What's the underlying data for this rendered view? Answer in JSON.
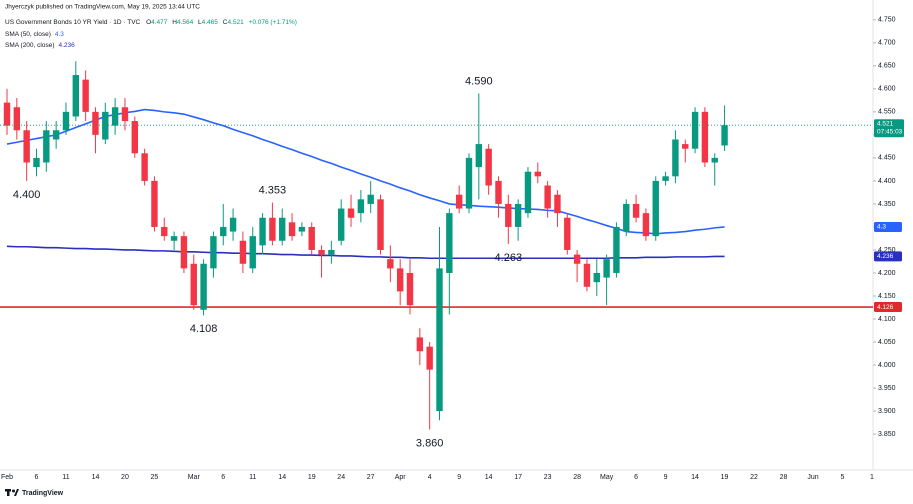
{
  "header": {
    "publisher": "Jhyerczyk published on TradingView.com, May 19, 2025 13:44 UTC",
    "symbol": "US Government Bonds 10 YR Yield · 1D · TVC",
    "ohlc_prefixes": [
      "O",
      "H",
      "L",
      "C"
    ],
    "change": "+0.076 (+1.71%)"
  },
  "footer": {
    "brand": "TradingView"
  },
  "chart_data": {
    "type": "candlestick",
    "categories": [
      "Feb",
      null,
      null,
      "6",
      null,
      null,
      "11",
      null,
      null,
      "14",
      null,
      null,
      "20",
      null,
      null,
      "25",
      null,
      null,
      null,
      "Mar",
      null,
      null,
      "6",
      null,
      null,
      "11",
      null,
      null,
      "14",
      null,
      null,
      "19",
      null,
      null,
      "24",
      null,
      null,
      "27",
      null,
      null,
      "Apr",
      null,
      null,
      "4",
      null,
      null,
      "9",
      null,
      null,
      "14",
      null,
      null,
      "17",
      null,
      null,
      "23",
      null,
      null,
      "28",
      null,
      null,
      "May",
      null,
      null,
      "6",
      null,
      null,
      "9",
      null,
      null,
      "14",
      null,
      null,
      "19",
      null,
      null,
      "22",
      null,
      null,
      "28",
      null,
      null,
      "Jun",
      null,
      null,
      "5",
      null,
      null,
      "1"
    ],
    "open": [
      4.57,
      4.56,
      4.51,
      4.43,
      4.44,
      4.49,
      4.51,
      4.54,
      4.62,
      4.55,
      4.49,
      4.52,
      4.56,
      4.53,
      4.46,
      4.4,
      4.3,
      4.27,
      4.28,
      4.22,
      4.12,
      4.21,
      4.28,
      4.29,
      4.27,
      4.21,
      4.26,
      4.32,
      4.27,
      4.31,
      4.29,
      4.3,
      4.25,
      4.24,
      4.27,
      4.34,
      4.33,
      4.35,
      4.36,
      4.23,
      4.21,
      4.2,
      4.06,
      4.04,
      3.9,
      4.2,
      4.37,
      4.34,
      4.43,
      4.47,
      4.4,
      4.35,
      4.3,
      4.33,
      4.42,
      4.39,
      4.37,
      4.32,
      4.24,
      4.22,
      4.18,
      4.19,
      4.2,
      4.29,
      4.35,
      4.33,
      4.28,
      4.4,
      4.41,
      4.48,
      4.47,
      4.55,
      4.44,
      4.477,
      null,
      null,
      null,
      null,
      null,
      null,
      null,
      null,
      null,
      null,
      null,
      null,
      null,
      null,
      null
    ],
    "high": [
      4.6,
      4.58,
      4.53,
      4.47,
      4.53,
      4.53,
      4.57,
      4.66,
      4.64,
      4.56,
      4.57,
      4.58,
      4.58,
      4.54,
      4.47,
      4.41,
      4.32,
      4.29,
      4.29,
      4.24,
      4.23,
      4.29,
      4.35,
      4.34,
      4.29,
      4.3,
      4.33,
      4.353,
      4.34,
      4.33,
      4.31,
      4.31,
      4.26,
      4.27,
      4.36,
      4.37,
      4.38,
      4.4,
      4.37,
      4.26,
      4.23,
      4.23,
      4.08,
      4.05,
      4.3,
      4.34,
      4.39,
      4.46,
      4.59,
      4.48,
      4.41,
      4.37,
      4.36,
      4.43,
      4.44,
      4.4,
      4.38,
      4.33,
      4.25,
      4.23,
      4.23,
      4.24,
      4.31,
      4.36,
      4.37,
      4.34,
      4.41,
      4.42,
      4.51,
      4.49,
      4.56,
      4.56,
      4.46,
      4.564,
      null,
      null,
      null,
      null,
      null,
      null,
      null,
      null,
      null,
      null,
      null,
      null,
      null,
      null,
      null
    ],
    "low": [
      4.5,
      4.49,
      4.4,
      4.41,
      4.42,
      4.47,
      4.5,
      4.53,
      4.53,
      4.46,
      4.48,
      4.5,
      4.51,
      4.45,
      4.39,
      4.29,
      4.27,
      4.25,
      4.2,
      4.12,
      4.108,
      4.19,
      4.26,
      4.27,
      4.2,
      4.2,
      4.24,
      4.26,
      4.26,
      4.27,
      4.28,
      4.24,
      4.19,
      4.22,
      4.26,
      4.3,
      4.31,
      4.33,
      4.24,
      4.18,
      4.13,
      4.11,
      4.0,
      3.86,
      3.88,
      4.11,
      4.33,
      4.33,
      4.36,
      4.37,
      4.32,
      4.263,
      4.27,
      4.32,
      4.395,
      4.32,
      4.3,
      4.24,
      4.18,
      4.16,
      4.15,
      4.13,
      4.19,
      4.28,
      4.31,
      4.27,
      4.27,
      4.39,
      4.395,
      4.44,
      4.46,
      4.43,
      4.39,
      4.465,
      null,
      null,
      null,
      null,
      null,
      null,
      null,
      null,
      null,
      null,
      null,
      null,
      null,
      null,
      null
    ],
    "close": [
      4.52,
      4.51,
      4.44,
      4.45,
      4.51,
      4.51,
      4.55,
      4.63,
      4.55,
      4.5,
      4.55,
      4.56,
      4.53,
      4.46,
      4.4,
      4.3,
      4.28,
      4.28,
      4.21,
      4.13,
      4.22,
      4.28,
      4.3,
      4.32,
      4.22,
      4.28,
      4.32,
      4.27,
      4.32,
      4.28,
      4.3,
      4.25,
      4.24,
      4.25,
      4.34,
      4.32,
      4.36,
      4.37,
      4.25,
      4.21,
      4.16,
      4.13,
      4.03,
      3.99,
      4.21,
      4.33,
      4.34,
      4.45,
      4.48,
      4.39,
      4.35,
      4.3,
      4.35,
      4.42,
      4.41,
      4.34,
      4.33,
      4.25,
      4.22,
      4.17,
      4.2,
      4.23,
      4.3,
      4.35,
      4.32,
      4.28,
      4.4,
      4.41,
      4.49,
      4.47,
      4.55,
      4.44,
      4.45,
      4.521,
      null,
      null,
      null,
      null,
      null,
      null,
      null,
      null,
      null,
      null,
      null,
      null,
      null,
      null,
      null
    ],
    "up_color": "#089981",
    "down_color": "#f23645",
    "indicators": [
      {
        "name": "SMA (50, close)",
        "color": "#2962ff",
        "values": [
          4.48,
          4.484,
          4.488,
          4.492,
          4.496,
          4.5,
          4.508,
          4.516,
          4.524,
          4.532,
          4.54,
          4.544,
          4.548,
          4.551,
          4.555,
          4.553,
          4.55,
          4.548,
          4.545,
          4.539,
          4.533,
          4.526,
          4.52,
          4.512,
          4.505,
          4.498,
          4.49,
          4.483,
          4.475,
          4.468,
          4.46,
          4.453,
          4.445,
          4.438,
          4.43,
          4.423,
          4.415,
          4.408,
          4.4,
          4.393,
          4.385,
          4.378,
          4.37,
          4.363,
          4.357,
          4.35,
          4.348,
          4.347,
          4.345,
          4.344,
          4.343,
          4.341,
          4.34,
          4.339,
          4.338,
          4.336,
          4.335,
          4.329,
          4.323,
          4.316,
          4.31,
          4.303,
          4.297,
          4.29,
          4.288,
          4.287,
          4.285,
          4.287,
          4.288,
          4.29,
          4.293,
          4.295,
          4.298,
          4.3,
          null,
          null,
          null,
          null,
          null,
          null,
          null,
          null,
          null,
          null,
          null,
          null,
          null,
          null,
          null
        ]
      },
      {
        "name": "SMA (200, close)",
        "color": "#2a2fbf",
        "values": [
          4.258,
          4.257,
          4.257,
          4.256,
          4.255,
          4.255,
          4.254,
          4.253,
          4.253,
          4.252,
          4.252,
          4.251,
          4.25,
          4.25,
          4.249,
          4.248,
          4.248,
          4.247,
          4.246,
          4.246,
          4.245,
          4.244,
          4.244,
          4.243,
          4.243,
          4.242,
          4.242,
          4.241,
          4.24,
          4.24,
          4.239,
          4.239,
          4.238,
          4.238,
          4.237,
          4.237,
          4.236,
          4.235,
          4.235,
          4.234,
          4.234,
          4.233,
          4.233,
          4.232,
          4.232,
          4.232,
          4.232,
          4.232,
          4.232,
          4.232,
          4.232,
          4.232,
          4.232,
          4.232,
          4.232,
          4.232,
          4.232,
          4.232,
          4.232,
          4.232,
          4.232,
          4.232,
          4.233,
          4.233,
          4.233,
          4.234,
          4.234,
          4.234,
          4.235,
          4.235,
          4.235,
          4.235,
          4.236,
          4.236,
          null,
          null,
          null,
          null,
          null,
          null,
          null,
          null,
          null,
          null,
          null,
          null,
          null,
          null,
          null
        ]
      }
    ],
    "levels": [
      {
        "value": 4.126,
        "color": "#e0292b"
      }
    ],
    "annotations": [
      {
        "value": 4.4,
        "label": "4.400"
      },
      {
        "value": 4.353,
        "label": "4.353"
      },
      {
        "value": 4.59,
        "label": "4.590"
      },
      {
        "value": 4.108,
        "label": "4.108"
      },
      {
        "value": 4.263,
        "label": "4.263"
      },
      {
        "value": 3.86,
        "label": "3.860"
      }
    ],
    "countdown": "07:45:03",
    "ylim": [
      3.772,
      4.793
    ],
    "yticks": [
      {
        "value": 4.75,
        "label": "4.750"
      },
      {
        "value": 4.7,
        "label": "4.700"
      },
      {
        "value": 4.65,
        "label": "4.650"
      },
      {
        "value": 4.6,
        "label": "4.600"
      },
      {
        "value": 4.55,
        "label": "4.550"
      },
      {
        "value": 4.5,
        "label": "4.500"
      },
      {
        "value": 4.45,
        "label": "4.450"
      },
      {
        "value": 4.4,
        "label": "4.400"
      },
      {
        "value": 4.35,
        "label": "4.350"
      },
      {
        "value": 4.3,
        "label": "4.300"
      },
      {
        "value": 4.25,
        "label": "4.250"
      },
      {
        "value": 4.2,
        "label": "4.200"
      },
      {
        "value": 4.15,
        "label": "4.150"
      },
      {
        "value": 4.1,
        "label": "4.100"
      },
      {
        "value": 4.05,
        "label": "4.050"
      },
      {
        "value": 4.0,
        "label": "4.000"
      },
      {
        "value": 3.95,
        "label": "3.950"
      },
      {
        "value": 3.9,
        "label": "3.900"
      },
      {
        "value": 3.85,
        "label": "3.850"
      }
    ]
  }
}
